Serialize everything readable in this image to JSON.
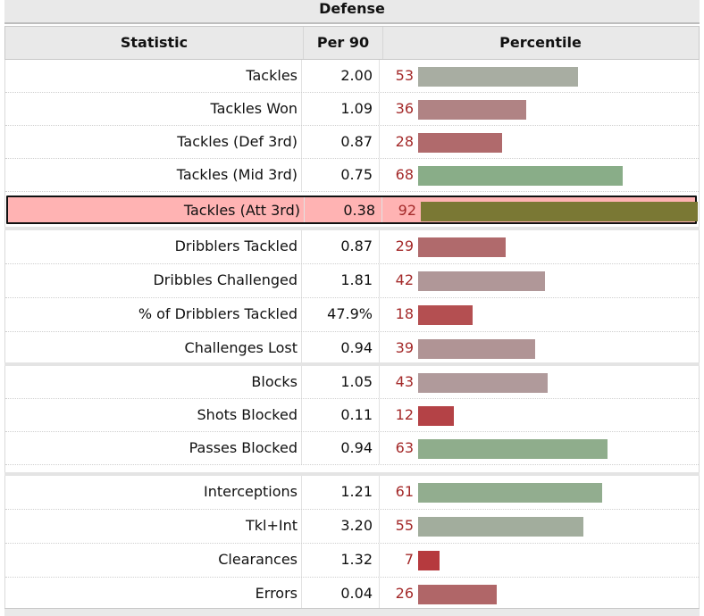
{
  "table": {
    "title": "Defense",
    "headers": {
      "statistic": "Statistic",
      "per90": "Per 90",
      "percentile": "Percentile"
    },
    "groups": [
      {
        "rows": [
          {
            "stat": "Tackles",
            "per90": "2.00",
            "percentile": 53,
            "bar_color": "#a8ada2"
          },
          {
            "stat": "Tackles Won",
            "per90": "1.09",
            "percentile": 36,
            "bar_color": "#b08384"
          },
          {
            "stat": "Tackles (Def 3rd)",
            "per90": "0.87",
            "percentile": 28,
            "bar_color": "#b06a6c"
          },
          {
            "stat": "Tackles (Mid 3rd)",
            "per90": "0.75",
            "percentile": 68,
            "bar_color": "#89ad88"
          },
          {
            "stat": "Tackles (Att 3rd)",
            "per90": "0.38",
            "percentile": 92,
            "bar_color": "#7a7834",
            "highlighted": true
          }
        ]
      },
      {
        "rows": [
          {
            "stat": "Dribblers Tackled",
            "per90": "0.87",
            "percentile": 29,
            "bar_color": "#b06a6c"
          },
          {
            "stat": "Dribbles Challenged",
            "per90": "1.81",
            "percentile": 42,
            "bar_color": "#b09798"
          },
          {
            "stat": "% of Dribblers Tackled",
            "per90": "47.9%",
            "percentile": 18,
            "bar_color": "#b44f51"
          },
          {
            "stat": "Challenges Lost",
            "per90": "0.94",
            "percentile": 39,
            "bar_color": "#b09495"
          }
        ]
      },
      {
        "rows": [
          {
            "stat": "Blocks",
            "per90": "1.05",
            "percentile": 43,
            "bar_color": "#b09a9b"
          },
          {
            "stat": "Shots Blocked",
            "per90": "0.11",
            "percentile": 12,
            "bar_color": "#b44246"
          },
          {
            "stat": "Passes Blocked",
            "per90": "0.94",
            "percentile": 63,
            "bar_color": "#8fad8c"
          }
        ]
      },
      {
        "rows": [
          {
            "stat": "Interceptions",
            "per90": "1.21",
            "percentile": 61,
            "bar_color": "#92ad8f"
          },
          {
            "stat": "Tkl+Int",
            "per90": "3.20",
            "percentile": 55,
            "bar_color": "#a2ad9d"
          },
          {
            "stat": "Clearances",
            "per90": "1.32",
            "percentile": 7,
            "bar_color": "#b63a3e"
          },
          {
            "stat": "Errors",
            "per90": "0.04",
            "percentile": 26,
            "bar_color": "#b06668"
          }
        ]
      }
    ]
  }
}
